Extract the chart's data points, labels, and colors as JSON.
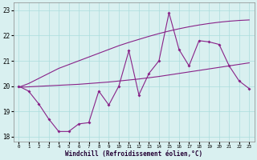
{
  "x_hours": [
    0,
    1,
    2,
    3,
    4,
    5,
    6,
    7,
    8,
    9,
    10,
    11,
    12,
    13,
    14,
    15,
    16,
    17,
    18,
    19,
    20,
    21,
    22,
    23
  ],
  "zigzag_y": [
    20.0,
    19.8,
    19.3,
    18.7,
    18.2,
    18.2,
    18.5,
    18.55,
    19.8,
    19.25,
    20.0,
    21.4,
    19.65,
    20.5,
    21.0,
    22.9,
    21.45,
    20.8,
    21.8,
    21.75,
    21.65,
    20.8,
    20.2,
    19.9
  ],
  "line_steep_y": [
    19.95,
    20.1,
    20.3,
    20.5,
    20.7,
    20.85,
    21.0,
    21.15,
    21.3,
    21.45,
    21.6,
    21.73,
    21.85,
    21.97,
    22.08,
    22.18,
    22.27,
    22.35,
    22.42,
    22.48,
    22.53,
    22.57,
    22.6,
    22.62
  ],
  "line_flat_y": [
    19.95,
    19.97,
    19.99,
    20.01,
    20.03,
    20.05,
    20.07,
    20.1,
    20.13,
    20.16,
    20.2,
    20.24,
    20.28,
    20.33,
    20.38,
    20.44,
    20.5,
    20.56,
    20.62,
    20.68,
    20.74,
    20.8,
    20.86,
    20.92
  ],
  "bg_color": "#d9f0f0",
  "line_color": "#882288",
  "grid_color": "#aadddd",
  "xlabel": "Windchill (Refroidissement éolien,°C)",
  "ylim": [
    17.8,
    23.3
  ],
  "xlim": [
    -0.5,
    23.5
  ],
  "yticks": [
    18,
    19,
    20,
    21,
    22,
    23
  ],
  "xticks": [
    0,
    1,
    2,
    3,
    4,
    5,
    6,
    7,
    8,
    9,
    10,
    11,
    12,
    13,
    14,
    15,
    16,
    17,
    18,
    19,
    20,
    21,
    22,
    23
  ]
}
